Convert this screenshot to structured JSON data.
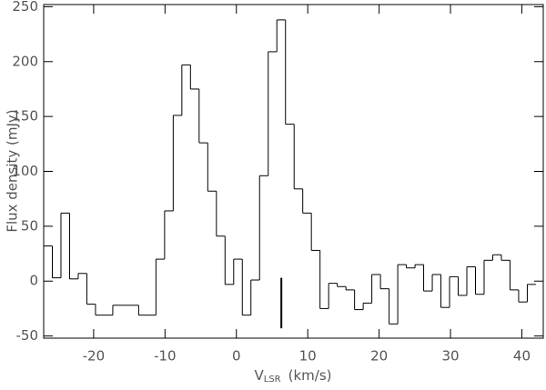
{
  "chart_data": {
    "type": "histogram",
    "ylabel": "Flux density (mJy)",
    "xlabel": {
      "main": "V",
      "sub": "LSR",
      "rest": "(km/s)"
    },
    "bins": [
      -27.0,
      -25.79,
      -24.58,
      -23.37,
      -22.16,
      -20.95,
      -19.74,
      -18.53,
      -17.32,
      -16.11,
      -14.9,
      -13.69,
      -12.48,
      -11.27,
      -10.06,
      -8.85,
      -7.64,
      -6.43,
      -5.22,
      -4.01,
      -2.8,
      -1.59,
      -0.38,
      0.83,
      2.04,
      3.25,
      4.46,
      5.67,
      6.88,
      8.09,
      9.3,
      10.51,
      11.72,
      12.93,
      14.14,
      15.35,
      16.56,
      17.77,
      18.98,
      20.19,
      21.4,
      22.61,
      23.82,
      25.03,
      26.24,
      27.45,
      28.66,
      29.87,
      31.08,
      32.29,
      33.5,
      34.71,
      35.92,
      37.13,
      38.34,
      39.55,
      40.76,
      41.97
    ],
    "values": [
      32,
      3,
      62,
      2,
      7,
      -21,
      -31,
      -31,
      -22,
      -22,
      -22,
      -31,
      -31,
      20,
      64,
      151,
      197,
      175,
      126,
      82,
      41,
      -3,
      20,
      -31,
      1,
      96,
      209,
      238,
      143,
      84,
      62,
      28,
      -25,
      -2,
      -5,
      -8,
      -26,
      -20,
      6,
      -7,
      -39,
      15,
      12,
      15,
      -9,
      6,
      -24,
      4,
      -13,
      13,
      -12,
      19,
      24,
      19,
      -8,
      -19,
      -3
    ],
    "color": "#000000",
    "marker": {
      "x": 6.3,
      "y": [
        -43,
        3
      ]
    },
    "xlim": [
      -27,
      43
    ],
    "ylim": [
      -52,
      252
    ],
    "xticks": [
      -20,
      -10,
      0,
      10,
      20,
      30,
      40
    ],
    "yticks": [
      -50,
      0,
      50,
      100,
      150,
      200,
      250
    ]
  }
}
